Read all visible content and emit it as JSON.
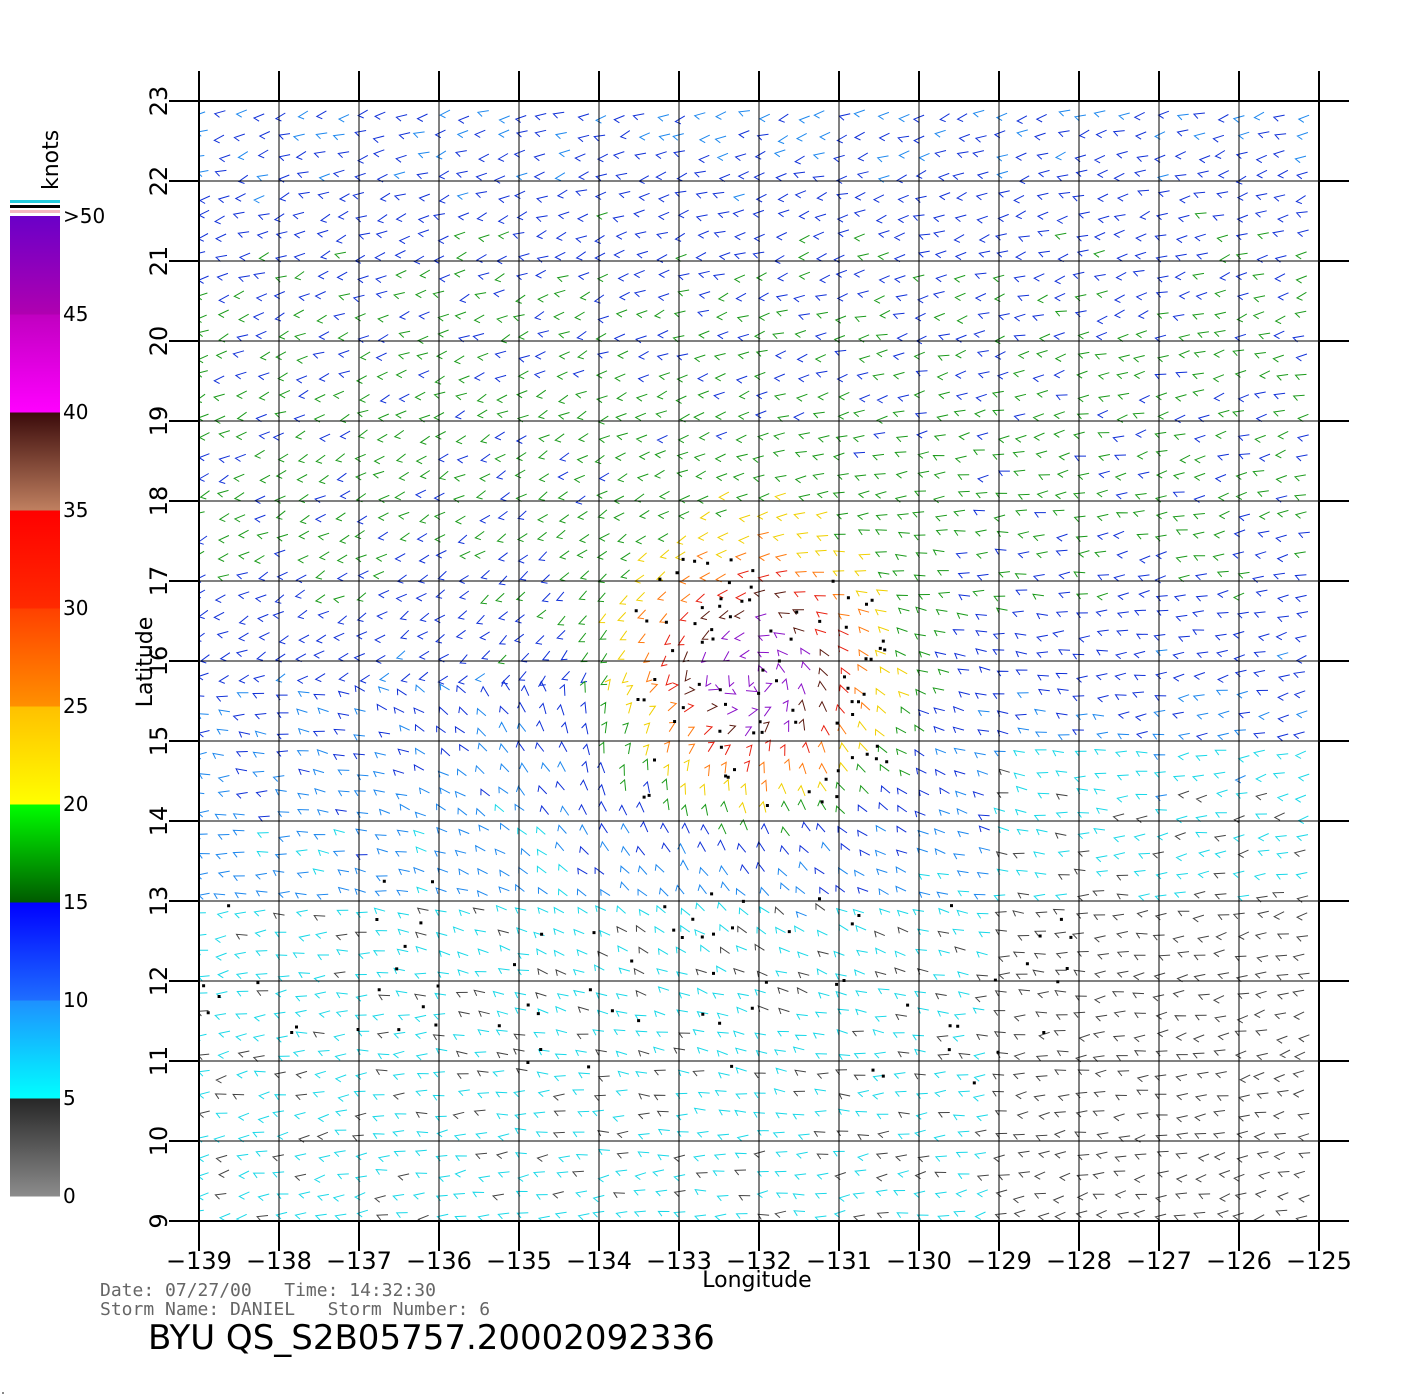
{
  "chart_data": {
    "type": "wind-barb-map",
    "xlabel": "Longitude",
    "ylabel": "Latitude",
    "xlim": [
      -139,
      -125
    ],
    "ylim": [
      9,
      23
    ],
    "x_ticks": [
      "−139",
      "−138",
      "−137",
      "−136",
      "−135",
      "−134",
      "−133",
      "−132",
      "−131",
      "−130",
      "−129",
      "−128",
      "−127",
      "−126",
      "−125"
    ],
    "y_ticks": [
      "9",
      "10",
      "11",
      "12",
      "13",
      "14",
      "15",
      "16",
      "17",
      "18",
      "19",
      "20",
      "21",
      "22",
      "23"
    ],
    "grid": true,
    "colorbar": {
      "title": "knots",
      "placement": "left",
      "ticks": [
        "0",
        "5",
        "10",
        "15",
        "20",
        "25",
        "30",
        "35",
        "40",
        "45",
        ">50"
      ],
      "bands": [
        {
          "from": 0,
          "to": 5,
          "colors": [
            "#8c8c8c",
            "#262626"
          ]
        },
        {
          "from": 5,
          "to": 10,
          "colors": [
            "#00ffff",
            "#1e90ff"
          ]
        },
        {
          "from": 10,
          "to": 15,
          "colors": [
            "#1e6eff",
            "#0000ff"
          ]
        },
        {
          "from": 15,
          "to": 20,
          "colors": [
            "#005a00",
            "#00ff00"
          ]
        },
        {
          "from": 20,
          "to": 25,
          "colors": [
            "#ffff00",
            "#ffc000"
          ]
        },
        {
          "from": 25,
          "to": 30,
          "colors": [
            "#ff9000",
            "#ff4000"
          ]
        },
        {
          "from": 30,
          "to": 35,
          "colors": [
            "#ff2a00",
            "#ff0000"
          ]
        },
        {
          "from": 35,
          "to": 40,
          "colors": [
            "#c08060",
            "#3a0a0a"
          ]
        },
        {
          "from": 40,
          "to": 45,
          "colors": [
            "#ff00ff",
            "#c000c0"
          ]
        },
        {
          "from": 45,
          "to": 50,
          "colors": [
            "#b000b0",
            "#6a00c8"
          ]
        }
      ]
    },
    "wind_field": {
      "center": {
        "lon": -132.0,
        "lat": 15.8
      },
      "max_speed_kts": 45,
      "barb_spacing_deg": 0.25
    }
  },
  "info": {
    "date_line": "Date: 07/27/00   Time: 14:32:30",
    "storm_line": "Storm Name: DANIEL   Storm Number: 6",
    "file_name": "BYU QS_S2B05757.20002092336"
  }
}
